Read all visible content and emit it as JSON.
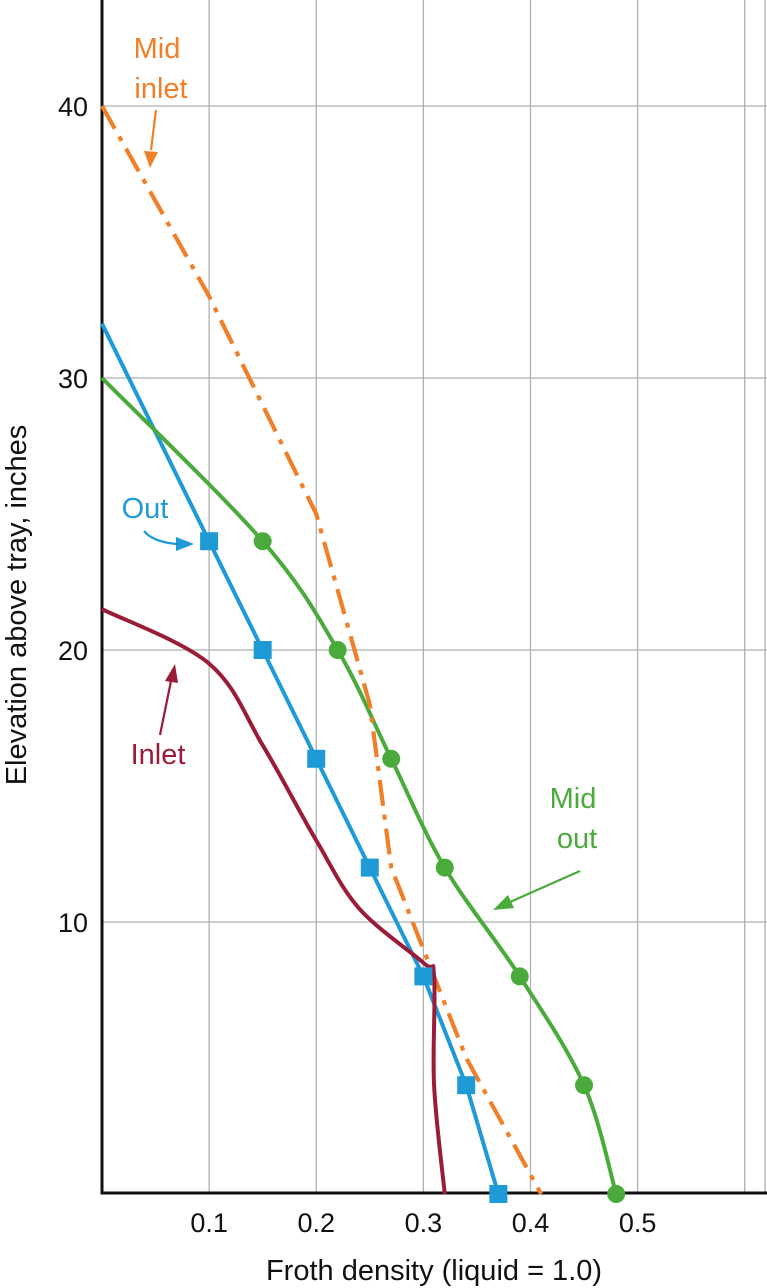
{
  "chart_data": {
    "type": "line",
    "title": "",
    "xlabel": "Froth density (liquid = 1.0)",
    "ylabel": "Elevation above tray, inches",
    "xlim": [
      0.0,
      0.62
    ],
    "ylim": [
      0,
      44
    ],
    "grid": true,
    "x_ticks": [
      0.1,
      0.2,
      0.3,
      0.4,
      0.5
    ],
    "x_tick_labels": [
      "0.1",
      "0.2",
      "0.3",
      "0.4",
      "0.5"
    ],
    "y_ticks": [
      10,
      20,
      30,
      40
    ],
    "y_tick_labels": [
      "10",
      "20",
      "30",
      "40"
    ],
    "series": [
      {
        "name": "Out",
        "color": "#1e9ad6",
        "line_style": "solid",
        "marker": "square",
        "points": [
          [
            0.0,
            32
          ],
          [
            0.1,
            24
          ],
          [
            0.15,
            20
          ],
          [
            0.2,
            16
          ],
          [
            0.25,
            12
          ],
          [
            0.3,
            8
          ],
          [
            0.34,
            4
          ],
          [
            0.37,
            0
          ]
        ]
      },
      {
        "name": "Mid out",
        "color": "#4aaa3c",
        "line_style": "solid",
        "marker": "circle",
        "points": [
          [
            0.0,
            30
          ],
          [
            0.15,
            24
          ],
          [
            0.22,
            20
          ],
          [
            0.27,
            16
          ],
          [
            0.32,
            12
          ],
          [
            0.39,
            8
          ],
          [
            0.45,
            4
          ],
          [
            0.48,
            0
          ]
        ]
      },
      {
        "name": "Mid inlet",
        "color": "#f07f2a",
        "line_style": "dash-dot",
        "marker": "none",
        "points": [
          [
            0.0,
            40
          ],
          [
            0.1,
            33
          ],
          [
            0.2,
            25
          ],
          [
            0.25,
            18
          ],
          [
            0.27,
            12
          ],
          [
            0.34,
            5
          ],
          [
            0.41,
            0
          ]
        ]
      },
      {
        "name": "Inlet",
        "color": "#9a1c38",
        "line_style": "solid",
        "marker": "none",
        "points": [
          [
            0.0,
            21.5
          ],
          [
            0.1,
            19.5
          ],
          [
            0.15,
            16.5
          ],
          [
            0.2,
            13.0
          ],
          [
            0.24,
            10.5
          ],
          [
            0.3,
            8.5
          ],
          [
            0.31,
            8.0
          ],
          [
            0.31,
            4.0
          ],
          [
            0.32,
            0
          ]
        ]
      }
    ],
    "annotations": [
      {
        "series": "Mid inlet",
        "lines": [
          "Mid",
          "inlet"
        ]
      },
      {
        "series": "Out",
        "lines": [
          "Out"
        ]
      },
      {
        "series": "Inlet",
        "lines": [
          "Inlet"
        ]
      },
      {
        "series": "Mid out",
        "lines": [
          "Mid",
          "out"
        ]
      }
    ]
  }
}
